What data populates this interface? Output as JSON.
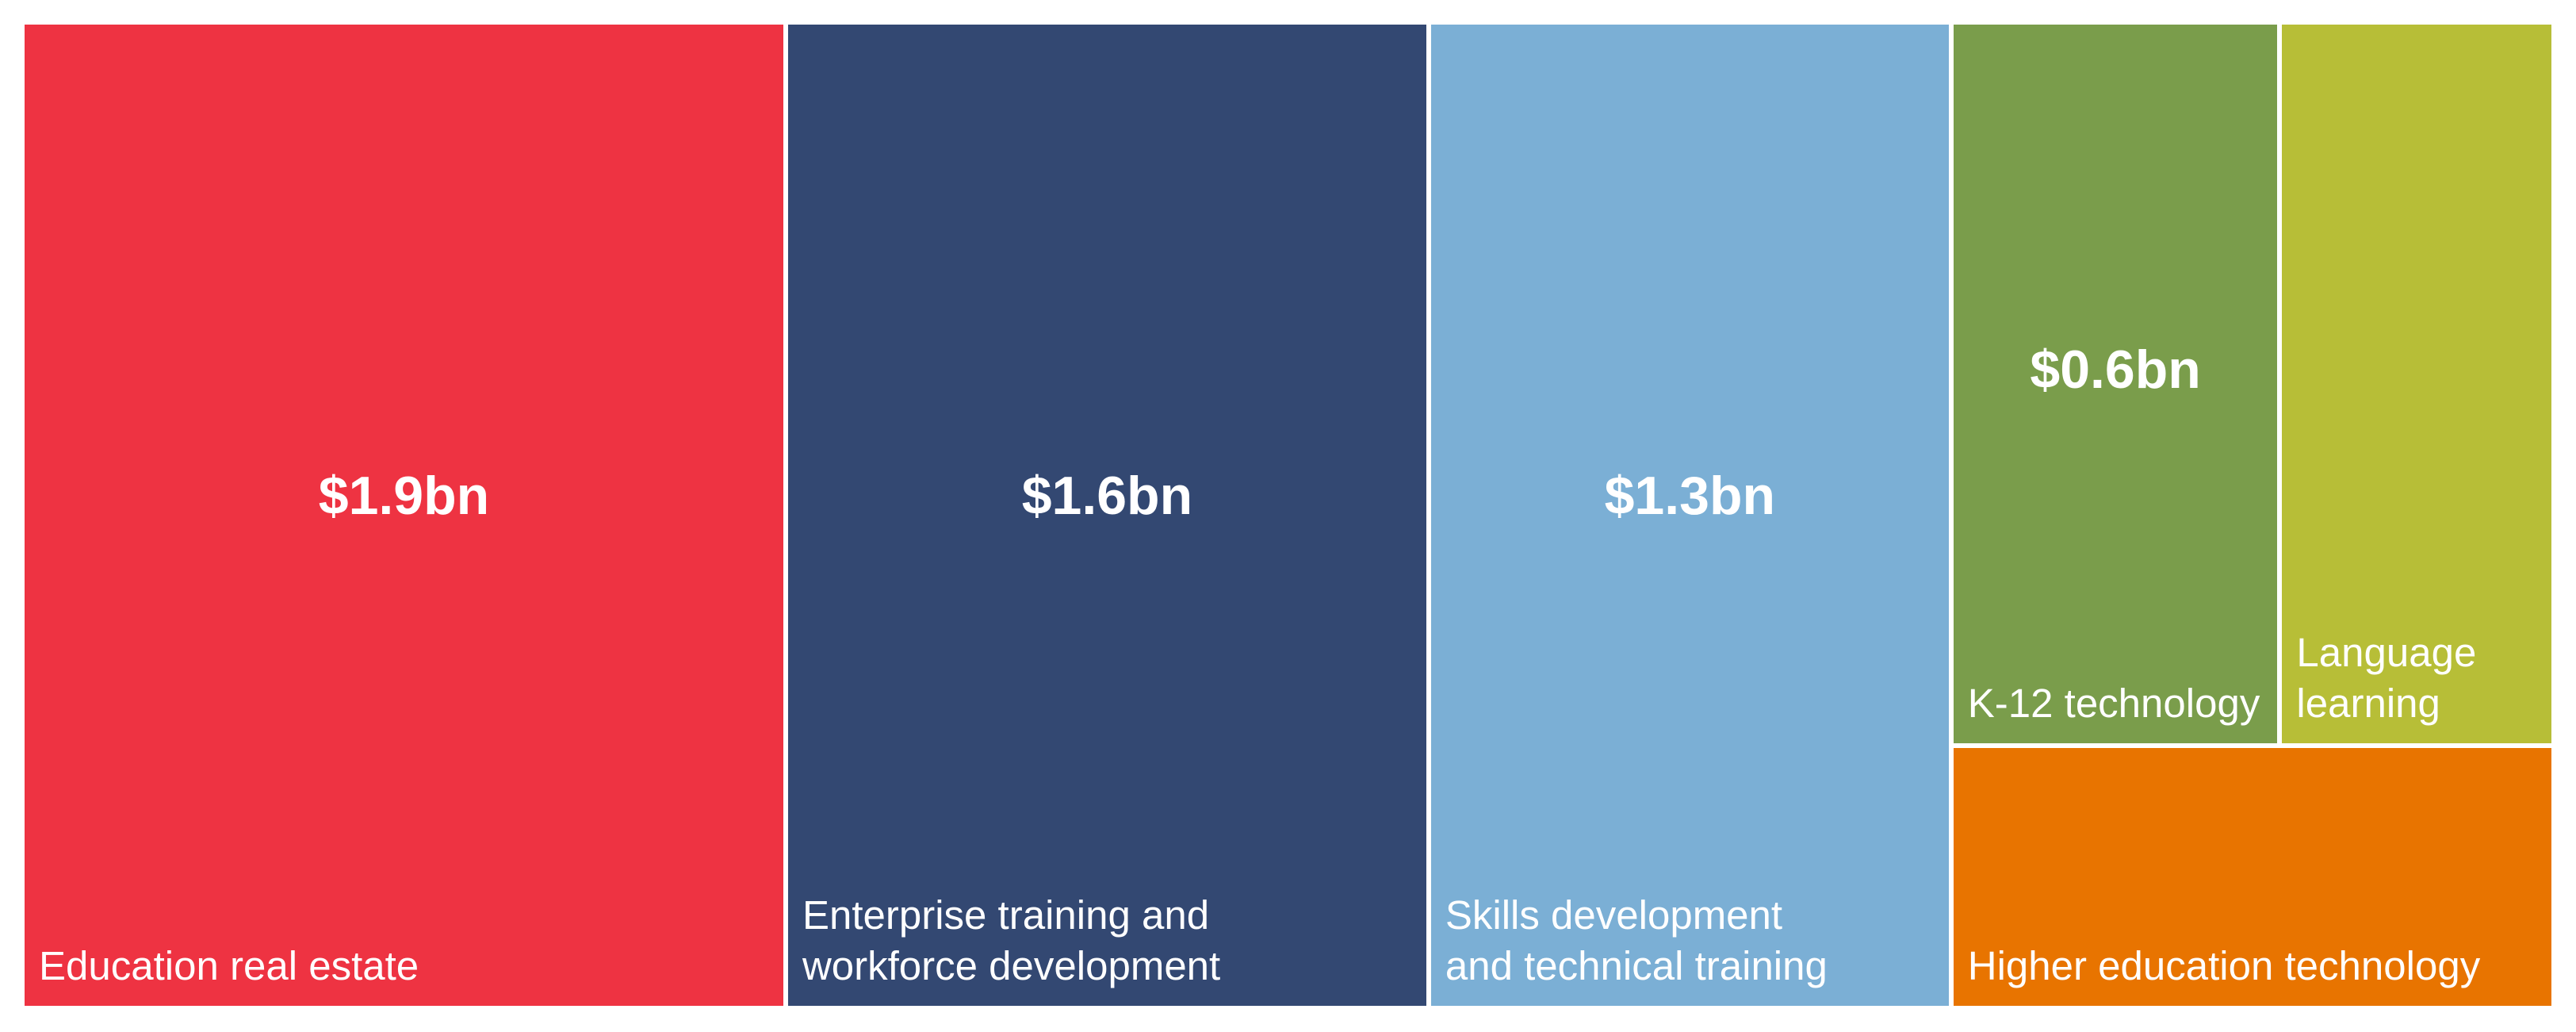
{
  "chart_data": {
    "type": "treemap",
    "title": "",
    "items": [
      {
        "name": "Education real estate",
        "label": "Education real estate",
        "value": 1.9,
        "value_label": "$1.9bn",
        "color": "#EE3342"
      },
      {
        "name": "Enterprise training and workforce development",
        "label": "Enterprise training and\nworkforce development",
        "value": 1.6,
        "value_label": "$1.6bn",
        "color": "#334872"
      },
      {
        "name": "Skills development and technical training",
        "label": "Skills development\nand technical training",
        "value": 1.3,
        "value_label": "$1.3bn",
        "color": "#7BAFD5"
      },
      {
        "name": "K-12 technology",
        "label": "K-12 technology",
        "value": 0.6,
        "value_label": "$0.6bn",
        "color": "#7A9D4B"
      },
      {
        "name": "Language learning",
        "label": "Language learning",
        "value": 0.5,
        "value_label": "",
        "color": "#B7BE37"
      },
      {
        "name": "Higher education technology",
        "label": "Higher education technology",
        "value": 0.4,
        "value_label": "",
        "color": "#E87400"
      }
    ]
  }
}
